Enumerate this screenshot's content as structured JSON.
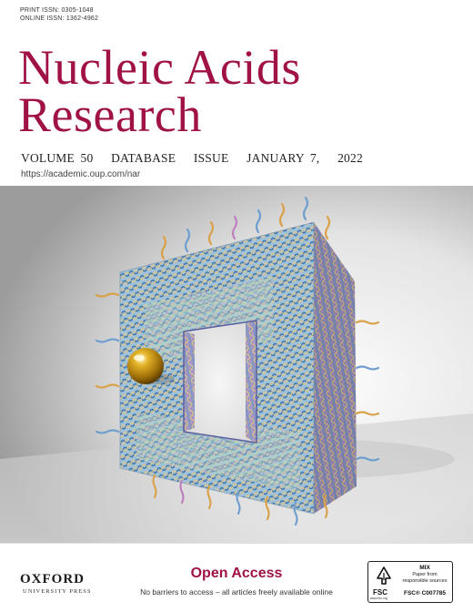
{
  "issn": {
    "print": "PRINT ISSN: 0305-1048",
    "online": "ONLINE ISSN: 1362-4962"
  },
  "journal": {
    "title_line1": "Nucleic Acids",
    "title_line2": "Research",
    "issue_line": "VOLUME 50   DATABASE   ISSUE   JANUARY 7,   2022",
    "url": "https://academic.oup.com/nar"
  },
  "publisher": {
    "name": "OXFORD",
    "subname": "UNIVERSITY PRESS"
  },
  "open_access": {
    "title": "Open Access",
    "subtitle": "No barriers to access – all articles freely available online"
  },
  "fsc": {
    "mix": "MIX",
    "description_line1": "Paper from",
    "description_line2": "responsible sources",
    "label": "FSC",
    "code": "FSC® C007785",
    "website": "www.fsc.org"
  },
  "colors": {
    "brand": "#a01246",
    "background": "#ffffff"
  }
}
